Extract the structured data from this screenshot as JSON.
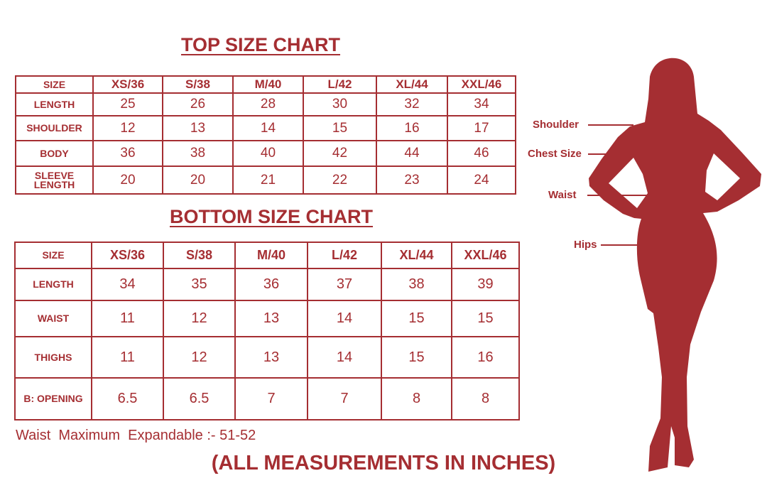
{
  "colors": {
    "accent": "#a52e32"
  },
  "top_chart": {
    "title": "TOP SIZE CHART",
    "header": [
      "SIZE",
      "XS/36",
      "S/38",
      "M/40",
      "L/42",
      "XL/44",
      "XXL/46"
    ],
    "rows": [
      [
        "LENGTH",
        "25",
        "26",
        "28",
        "30",
        "32",
        "34"
      ],
      [
        "SHOULDER",
        "12",
        "13",
        "14",
        "15",
        "16",
        "17"
      ],
      [
        "BODY",
        "36",
        "38",
        "40",
        "42",
        "44",
        "46"
      ],
      [
        "SLEEVE LENGTH",
        "20",
        "20",
        "21",
        "22",
        "23",
        "24"
      ]
    ]
  },
  "bottom_chart": {
    "title": "BOTTOM SIZE CHART",
    "header": [
      "SIZE",
      "XS/36",
      "S/38",
      "M/40",
      "L/42",
      "XL/44",
      "XXL/46"
    ],
    "rows": [
      [
        "LENGTH",
        "34",
        "35",
        "36",
        "37",
        "38",
        "39"
      ],
      [
        "WAIST",
        "11",
        "12",
        "13",
        "14",
        "15",
        "15"
      ],
      [
        "THIGHS",
        "11",
        "12",
        "13",
        "14",
        "15",
        "16"
      ],
      [
        "B: OPENING",
        "6.5",
        "6.5",
        "7",
        "7",
        "8",
        "8"
      ]
    ]
  },
  "note": "Waist  Maximum  Expandable :- 51-52",
  "footer": "(ALL MEASUREMENTS IN INCHES)",
  "figure": {
    "labels": [
      "Shoulder",
      "Chest Size",
      "Waist",
      "Hips"
    ]
  }
}
